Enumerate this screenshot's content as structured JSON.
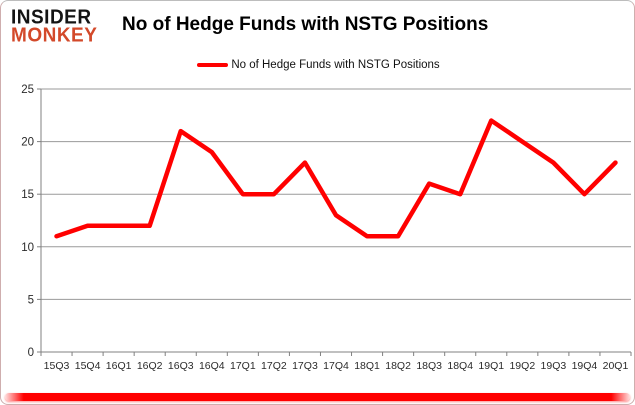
{
  "logo": {
    "line1": "INSIDER",
    "line2": "MONKEY"
  },
  "header": {
    "title": "No of Hedge Funds with NSTG Positions"
  },
  "legend": {
    "label": "No of Hedge Funds with NSTG Positions"
  },
  "colors": {
    "line": "#ff0000",
    "grid": "#9a9a9a",
    "axis": "#808080",
    "tick_text": "#2b2b2b",
    "logo_black": "#141414",
    "logo_red": "#d3492a",
    "accent_bar": "#ff0000"
  },
  "chart_data": {
    "type": "line",
    "title": "No of Hedge Funds with NSTG Positions",
    "xlabel": "",
    "ylabel": "",
    "categories": [
      "15Q3",
      "15Q4",
      "16Q1",
      "16Q2",
      "16Q3",
      "16Q4",
      "17Q1",
      "17Q2",
      "17Q3",
      "17Q4",
      "18Q1",
      "18Q2",
      "18Q3",
      "18Q4",
      "19Q1",
      "19Q2",
      "19Q3",
      "19Q4",
      "20Q1"
    ],
    "series": [
      {
        "name": "No of Hedge Funds with NSTG Positions",
        "color": "#ff0000",
        "values": [
          11,
          12,
          12,
          12,
          21,
          19,
          15,
          15,
          18,
          13,
          11,
          11,
          16,
          15,
          22,
          20,
          18,
          15,
          18
        ]
      }
    ],
    "ylim": [
      0,
      25
    ],
    "yticks": [
      0,
      5,
      10,
      15,
      20,
      25
    ],
    "grid": true,
    "legend_position": "top-center"
  }
}
